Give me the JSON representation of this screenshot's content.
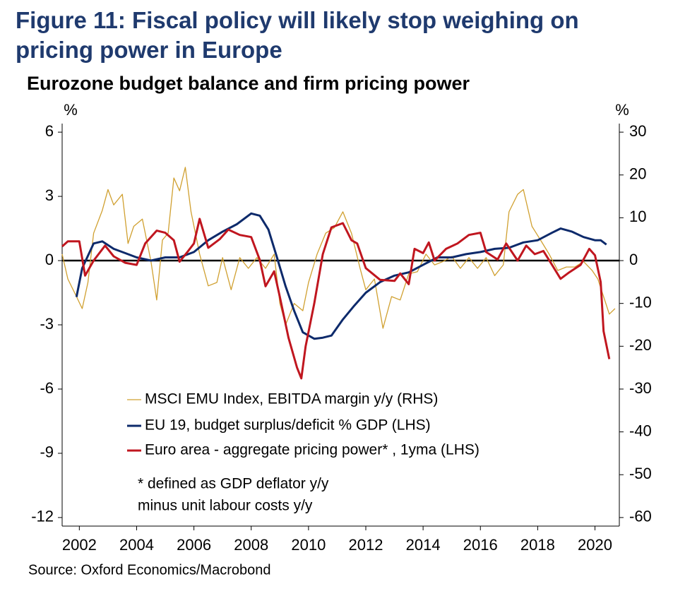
{
  "chart_data": {
    "type": "line",
    "title": "Figure 11: Fiscal policy will likely stop weighing on pricing power in Europe",
    "subtitle": "Eurozone budget balance and firm pricing power",
    "y_label": "%",
    "y2_label": "%",
    "source": "Source: Oxford Economics/Macrobond",
    "note": [
      "* defined as GDP deflator y/y",
      "minus unit labour costs y/y"
    ],
    "xlim": [
      2001.4,
      2020.85
    ],
    "xticks": [
      2002,
      2004,
      2006,
      2008,
      2010,
      2012,
      2014,
      2016,
      2018,
      2020
    ],
    "ylim": [
      -12.4,
      6.4
    ],
    "yticks": [
      -12,
      -9,
      -6,
      -3,
      0,
      3,
      6
    ],
    "y2lim": [
      -62,
      32
    ],
    "y2ticks": [
      -60,
      -50,
      -40,
      -30,
      -20,
      -10,
      0,
      10,
      20,
      30
    ],
    "series": [
      {
        "name": "MSCI EMU Index, EBITDA margin y/y (RHS)",
        "color": "#d0a030",
        "axis": "y2",
        "width": 1.3,
        "x": [
          2001.4,
          2001.6,
          2001.9,
          2002.1,
          2002.3,
          2002.5,
          2002.8,
          2003.0,
          2003.2,
          2003.5,
          2003.7,
          2003.9,
          2004.2,
          2004.5,
          2004.7,
          2004.9,
          2005.1,
          2005.3,
          2005.5,
          2005.7,
          2005.9,
          2006.2,
          2006.5,
          2006.8,
          2007.0,
          2007.3,
          2007.6,
          2007.9,
          2008.2,
          2008.5,
          2008.8,
          2009.0,
          2009.2,
          2009.5,
          2009.8,
          2010.0,
          2010.3,
          2010.6,
          2010.9,
          2011.2,
          2011.5,
          2011.8,
          2012.0,
          2012.3,
          2012.6,
          2012.9,
          2013.2,
          2013.5,
          2013.8,
          2014.1,
          2014.4,
          2014.7,
          2015.0,
          2015.3,
          2015.6,
          2015.9,
          2016.2,
          2016.5,
          2016.8,
          2017.0,
          2017.3,
          2017.5,
          2017.8,
          2018.1,
          2018.4,
          2018.7,
          2019.0,
          2019.3,
          2019.6,
          2019.9,
          2020.1,
          2020.3,
          2020.5,
          2020.7
        ],
        "values": [
          1.5,
          -4.3,
          -8.4,
          -11.2,
          -5.1,
          6.4,
          11.7,
          16.6,
          13,
          15.5,
          4,
          8,
          9.7,
          -0.2,
          -9.2,
          4.8,
          6.4,
          19.3,
          16.3,
          21.8,
          11.4,
          1.5,
          -5.9,
          -5.1,
          0.7,
          -6.8,
          0.7,
          -1.8,
          0.7,
          -1.8,
          1.5,
          -10,
          -15,
          -10,
          -11.7,
          -5.1,
          1.5,
          6.4,
          7.7,
          11.4,
          6.4,
          -1.8,
          -6.8,
          -4.3,
          -15.8,
          -8.4,
          -9.2,
          -3.1,
          -2.6,
          1.5,
          -1,
          -0.2,
          1,
          -1.8,
          0.7,
          -1.8,
          0.7,
          -3.5,
          -1,
          11.4,
          15.5,
          16.6,
          8,
          4.8,
          1.5,
          -2.3,
          -1.5,
          -1.5,
          -0.2,
          -2.3,
          -4.3,
          -8.4,
          -12.5,
          -11.2
        ]
      },
      {
        "name": "EU 19, budget surplus/deficit % GDP (LHS)",
        "color": "#0d2a6b",
        "width": 3,
        "x": [
          2001.9,
          2002.1,
          2002.5,
          2002.8,
          2003.2,
          2003.6,
          2004.0,
          2004.5,
          2005.0,
          2005.5,
          2006.0,
          2006.5,
          2007.0,
          2007.5,
          2008.0,
          2008.3,
          2008.6,
          2008.9,
          2009.2,
          2009.5,
          2009.8,
          2010.2,
          2010.5,
          2010.8,
          2011.2,
          2011.6,
          2012.0,
          2012.5,
          2013.0,
          2013.5,
          2014.0,
          2014.5,
          2015.0,
          2015.5,
          2016.0,
          2016.5,
          2017.0,
          2017.5,
          2018.0,
          2018.5,
          2018.8,
          2019.2,
          2019.6,
          2020.0,
          2020.2,
          2020.4
        ],
        "values": [
          -1.7,
          -0.35,
          0.8,
          0.9,
          0.55,
          0.35,
          0.15,
          0,
          0.15,
          0.15,
          0.4,
          0.95,
          1.35,
          1.7,
          2.2,
          2.1,
          1.45,
          0.15,
          -1.2,
          -2.35,
          -3.35,
          -3.65,
          -3.6,
          -3.5,
          -2.75,
          -2.1,
          -1.5,
          -1,
          -0.7,
          -0.55,
          -0.2,
          0.15,
          0.15,
          0.3,
          0.4,
          0.55,
          0.6,
          0.85,
          0.95,
          1.3,
          1.5,
          1.35,
          1.1,
          0.95,
          0.95,
          0.75
        ]
      },
      {
        "name": "Euro area - aggregate pricing power* , 1yma (LHS)",
        "color": "#c0161f",
        "width": 3,
        "x": [
          2001.4,
          2001.6,
          2002.0,
          2002.2,
          2002.5,
          2002.9,
          2003.2,
          2003.6,
          2004.0,
          2004.3,
          2004.7,
          2005.0,
          2005.3,
          2005.5,
          2005.8,
          2006.0,
          2006.2,
          2006.5,
          2006.9,
          2007.2,
          2007.6,
          2008.0,
          2008.3,
          2008.5,
          2008.8,
          2009.0,
          2009.3,
          2009.6,
          2009.75,
          2009.9,
          2010.2,
          2010.5,
          2010.8,
          2011.2,
          2011.5,
          2011.7,
          2012.0,
          2012.5,
          2013.0,
          2013.2,
          2013.5,
          2013.7,
          2014.0,
          2014.2,
          2014.4,
          2014.8,
          2015.2,
          2015.6,
          2016.0,
          2016.2,
          2016.6,
          2016.9,
          2017.3,
          2017.6,
          2017.9,
          2018.2,
          2018.5,
          2018.8,
          2019.1,
          2019.5,
          2019.8,
          2020.0,
          2020.2,
          2020.3,
          2020.5
        ],
        "values": [
          0.66,
          0.9,
          0.9,
          -0.7,
          0,
          0.7,
          0.2,
          -0.1,
          -0.2,
          0.8,
          1.4,
          1.3,
          0.95,
          -0.05,
          0.45,
          0.8,
          1.95,
          0.6,
          1,
          1.45,
          1.2,
          1.1,
          0.03,
          -1.2,
          -0.5,
          -1.7,
          -3.6,
          -5,
          -5.5,
          -4,
          -2,
          0.3,
          1.55,
          1.75,
          0.95,
          0.8,
          -0.35,
          -0.9,
          -0.95,
          -0.6,
          -1.1,
          0.55,
          0.35,
          0.85,
          0,
          0.55,
          0.8,
          1.2,
          1.3,
          0.4,
          0.05,
          0.8,
          0,
          0.7,
          0.3,
          0.45,
          -0.2,
          -0.85,
          -0.55,
          -0.2,
          0.55,
          0.25,
          -1,
          -3.3,
          -4.6
        ]
      }
    ]
  }
}
